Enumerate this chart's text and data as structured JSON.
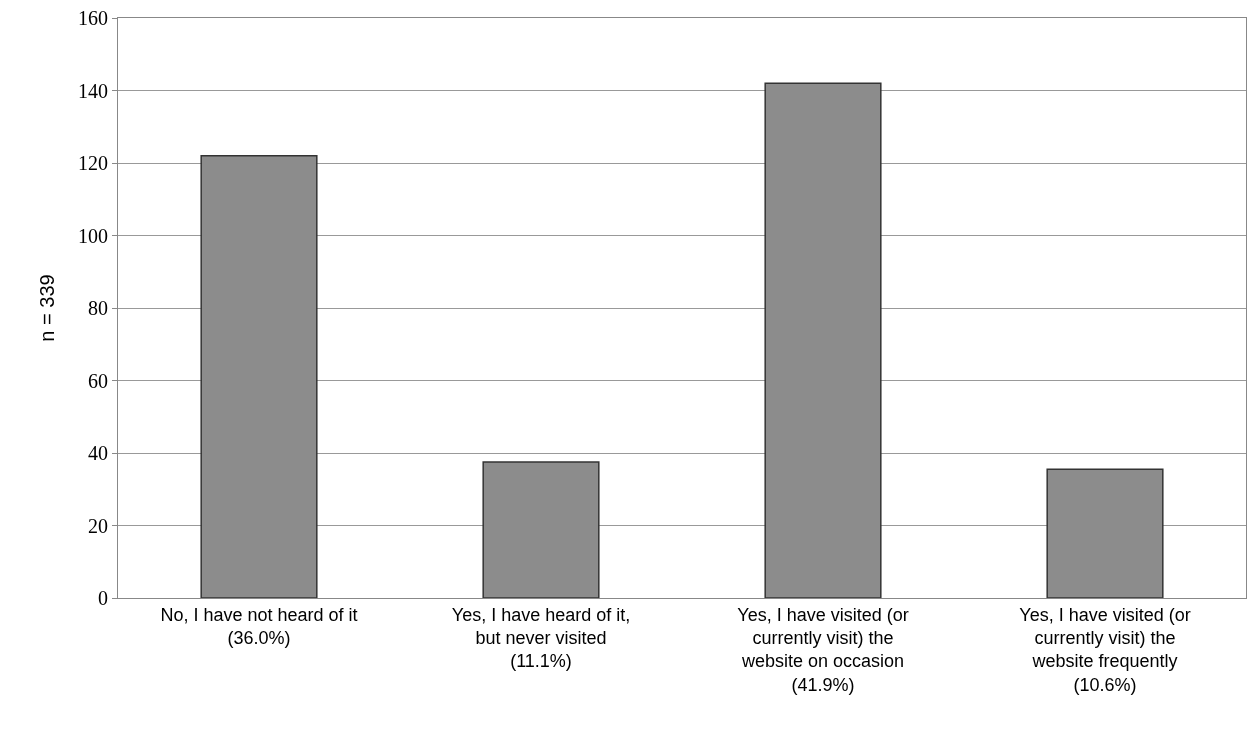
{
  "chart_data": {
    "type": "bar",
    "ylabel": "n = 339",
    "categories": [
      "No, I have not heard of it\n(36.0%)",
      "Yes, I have heard of it,\nbut never visited\n(11.1%)",
      "Yes, I have visited (or\ncurrently visit) the\nwebsite on occasion\n(41.9%)",
      "Yes, I have visited (or\ncurrently visit) the\nwebsite frequently\n(10.6%)"
    ],
    "values": [
      122,
      37.5,
      142,
      35.5
    ],
    "color": "#8c8c8c",
    "ylim": [
      0,
      160
    ],
    "yticks": [
      0,
      20,
      40,
      60,
      80,
      100,
      120,
      140,
      160
    ],
    "grid": "y",
    "legend": false
  }
}
